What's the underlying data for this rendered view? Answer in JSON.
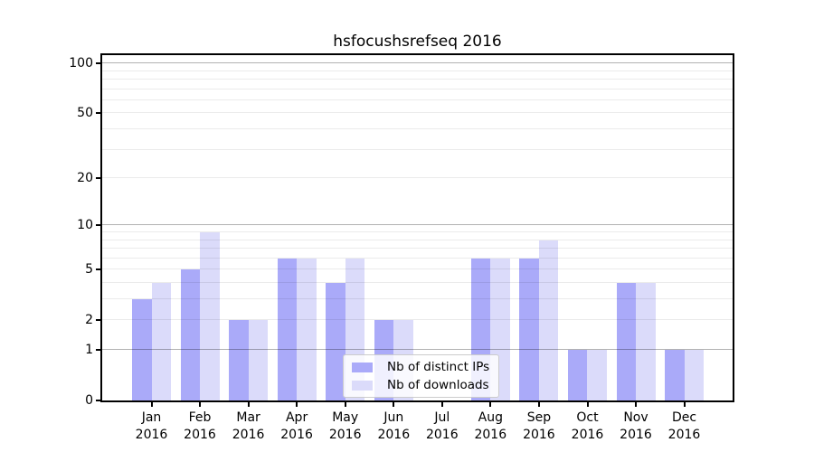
{
  "chart_data": {
    "type": "bar",
    "title": "hsfocushsrefseq 2016",
    "categories": [
      "Jan",
      "Feb",
      "Mar",
      "Apr",
      "May",
      "Jun",
      "Jul",
      "Aug",
      "Sep",
      "Oct",
      "Nov",
      "Dec"
    ],
    "category_year": "2016",
    "series": [
      {
        "name": "Nb of distinct IPs",
        "color": "#aaaaf9",
        "values": [
          3,
          5,
          2,
          6,
          4,
          2,
          0,
          6,
          6,
          1,
          4,
          1
        ]
      },
      {
        "name": "Nb of downloads",
        "color": "#dbdbfa",
        "values": [
          4,
          9,
          2,
          6,
          6,
          2,
          0,
          6,
          8,
          1,
          4,
          1
        ]
      }
    ],
    "xlabel": "",
    "ylabel": "",
    "yscale": "log1p",
    "ylim": [
      0,
      114
    ],
    "yticks": [
      0,
      1,
      2,
      5,
      10,
      20,
      50,
      100
    ],
    "grid": {
      "on": true,
      "major_lines": [
        1,
        10,
        100
      ],
      "minor_lines": [
        2,
        3,
        4,
        5,
        6,
        7,
        8,
        9,
        20,
        30,
        40,
        50,
        60,
        70,
        80,
        90
      ]
    },
    "legend": {
      "position": "lower-center-inside",
      "entries": [
        "Nb of distinct IPs",
        "Nb of downloads"
      ]
    },
    "colors": {
      "background": "#ffffff",
      "spine": "#000000",
      "grid_major": "#b3b3b3",
      "grid_minor": "#ebebeb",
      "bar_distinct_ips": "#aaaaf9",
      "bar_downloads": "#dbdbfa"
    }
  }
}
